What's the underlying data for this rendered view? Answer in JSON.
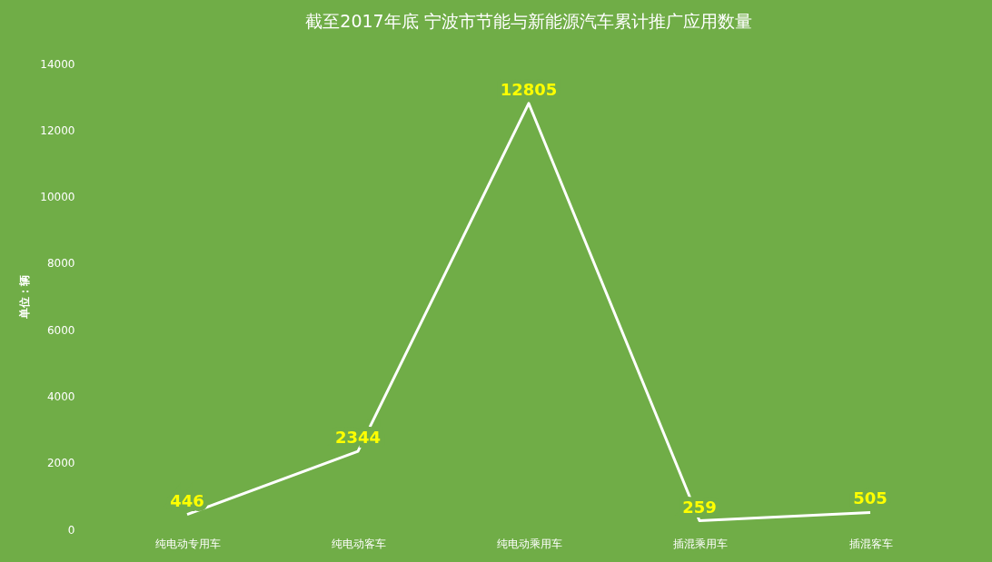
{
  "chart_data": {
    "type": "line",
    "title": "截至2017年底  宁波市节能与新能源汽车累计推广应用数量",
    "ylabel": "单位：辆",
    "categories": [
      "纯电动专用车",
      "纯电动客车",
      "纯电动乘用车",
      "插混乘用车",
      "插混客车"
    ],
    "series": [
      {
        "color": "#ffffff",
        "values": [
          446,
          2344,
          12805,
          259,
          505
        ]
      }
    ],
    "ylim": [
      0,
      14000
    ],
    "yticks": [
      0,
      2000,
      4000,
      6000,
      8000,
      10000,
      12000,
      14000
    ],
    "grid": false,
    "marker": "none",
    "line_style": "solid",
    "data_labels": true
  }
}
